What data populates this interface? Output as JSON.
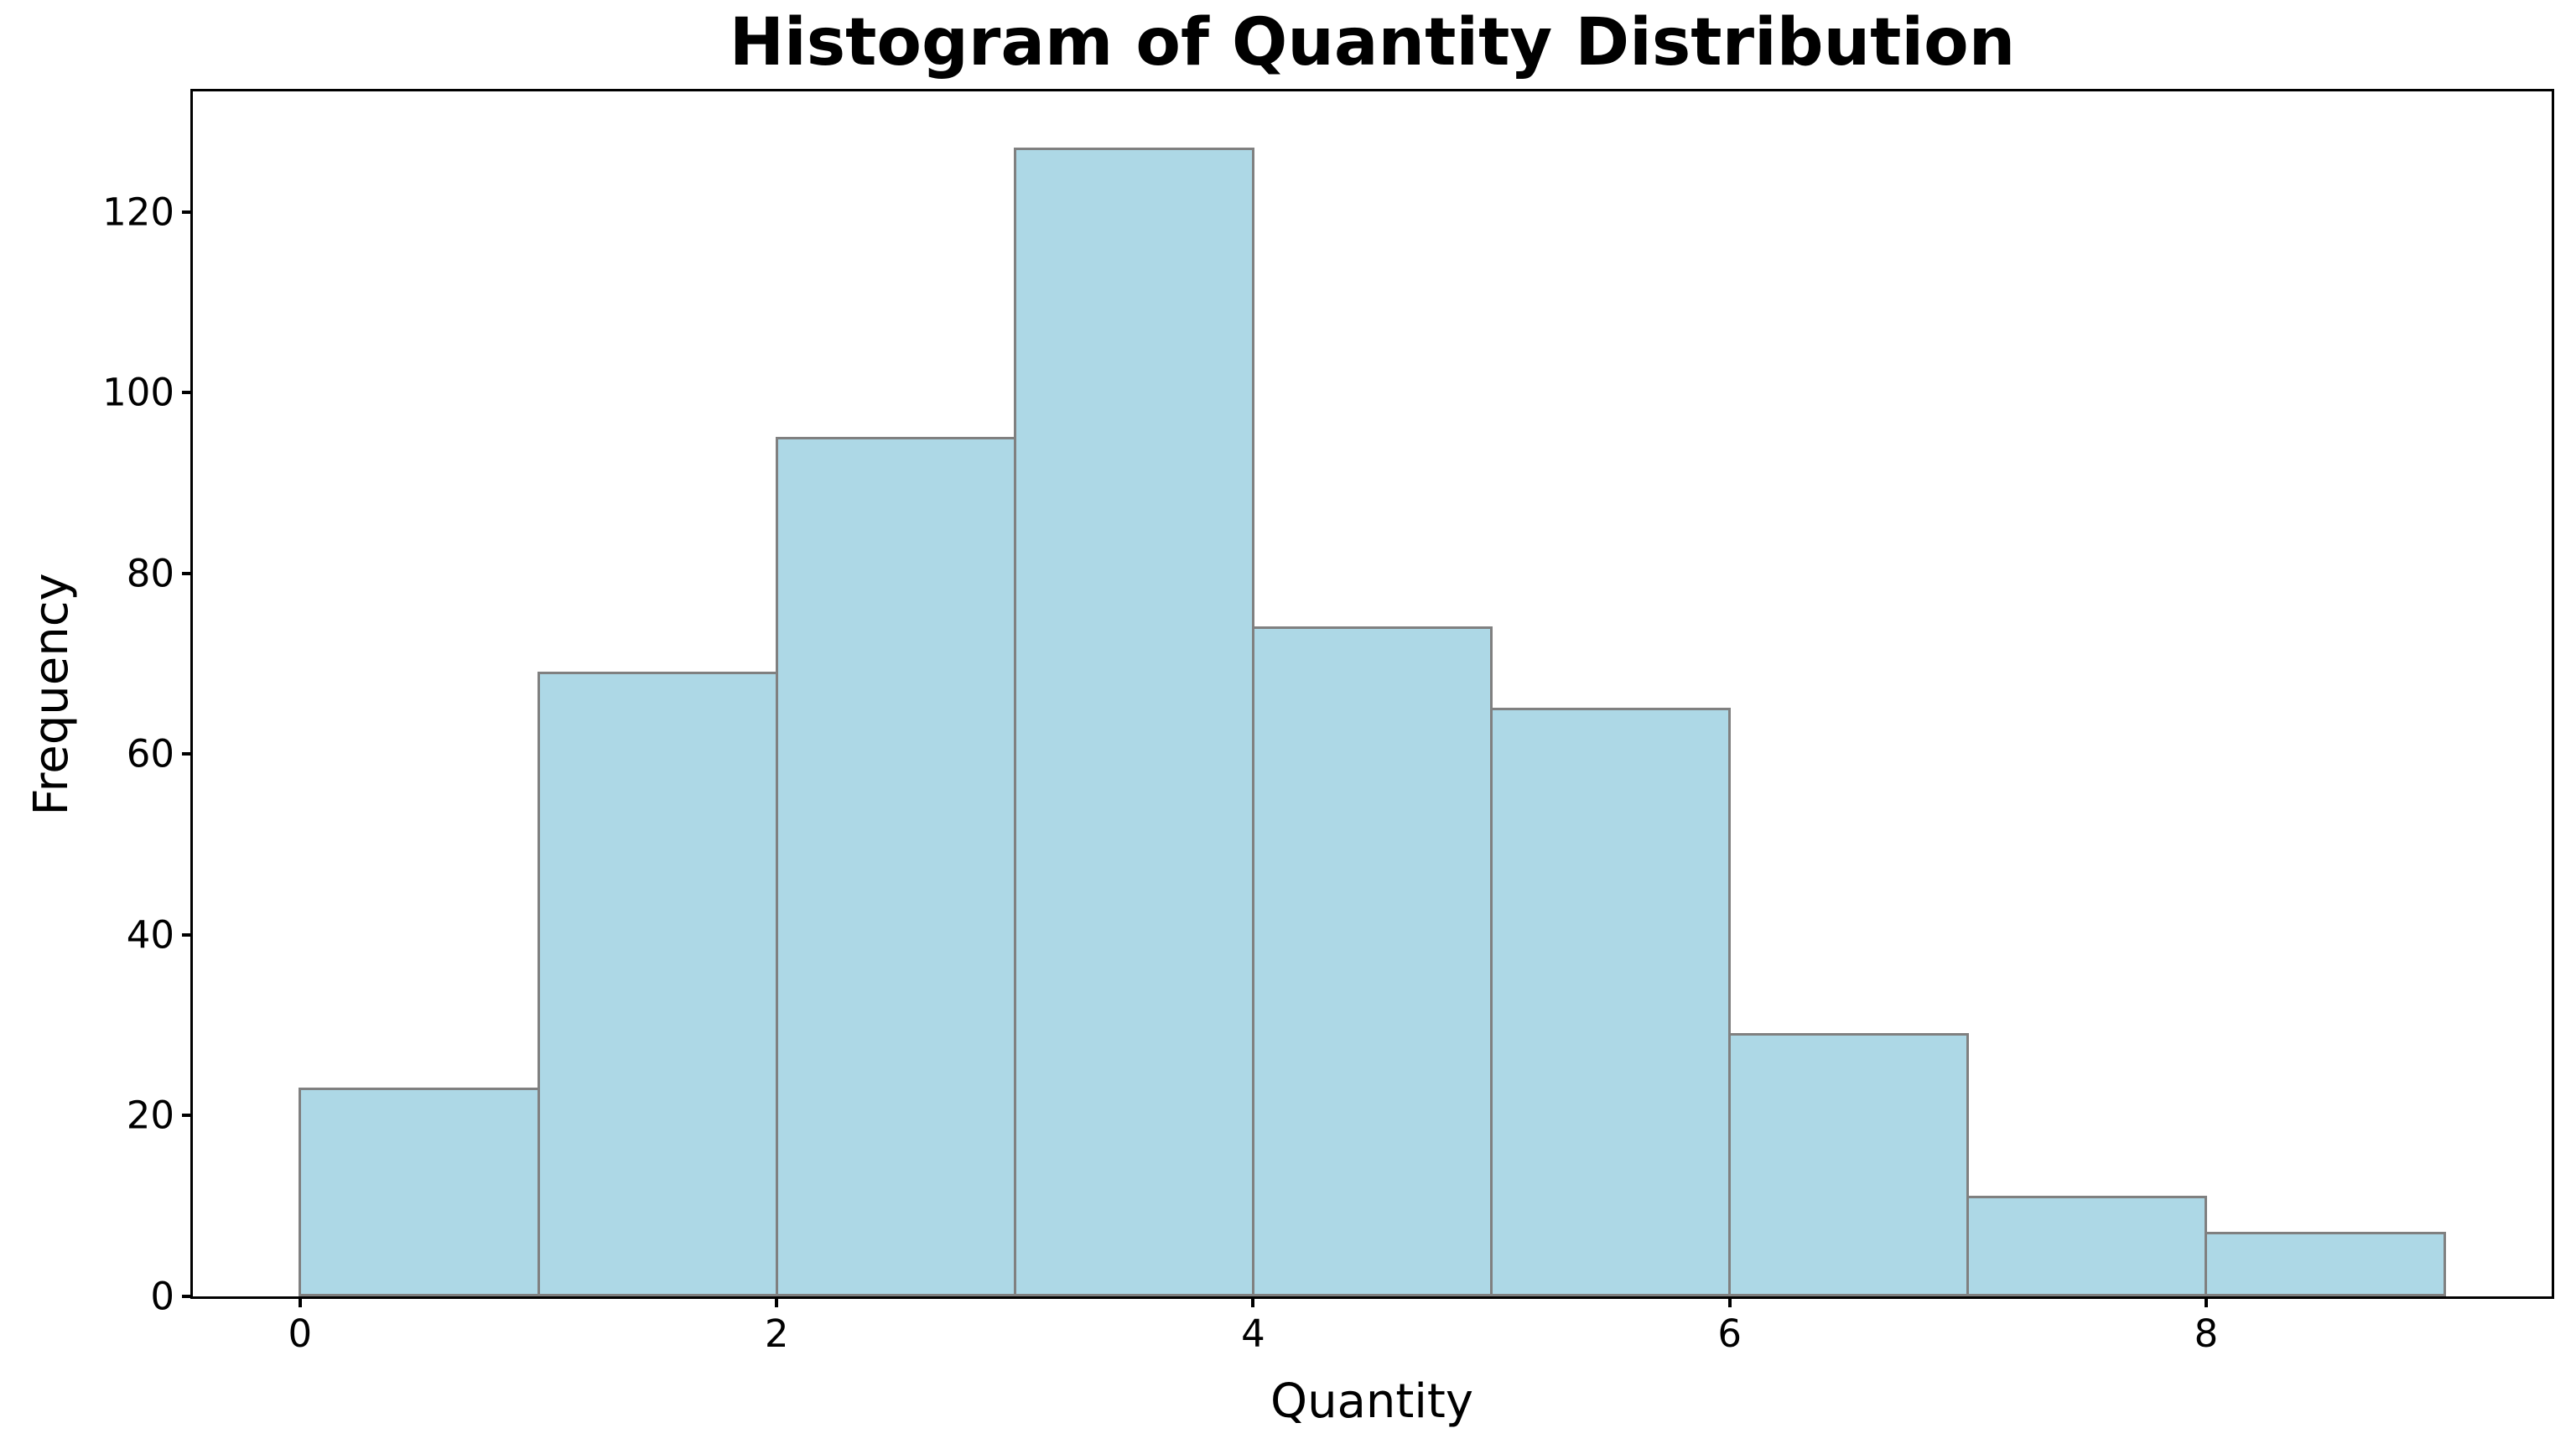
{
  "chart_data": {
    "type": "bar",
    "subtype": "histogram",
    "title": "Histogram of Quantity Distribution",
    "xlabel": "Quantity",
    "ylabel": "Frequency",
    "bin_edges": [
      0,
      1,
      2,
      3,
      4,
      5,
      6,
      7,
      8,
      9
    ],
    "values": [
      23,
      69,
      95,
      127,
      74,
      65,
      29,
      11,
      7
    ],
    "x_ticks": [
      0,
      2,
      4,
      6,
      8
    ],
    "y_ticks": [
      0,
      20,
      40,
      60,
      80,
      100,
      120
    ],
    "xlim": [
      -0.45,
      9.45
    ],
    "ylim": [
      0,
      133.35
    ],
    "bar_color": "#ADD8E6",
    "bar_edge_color": "#808080",
    "grid": false,
    "legend": "none"
  }
}
